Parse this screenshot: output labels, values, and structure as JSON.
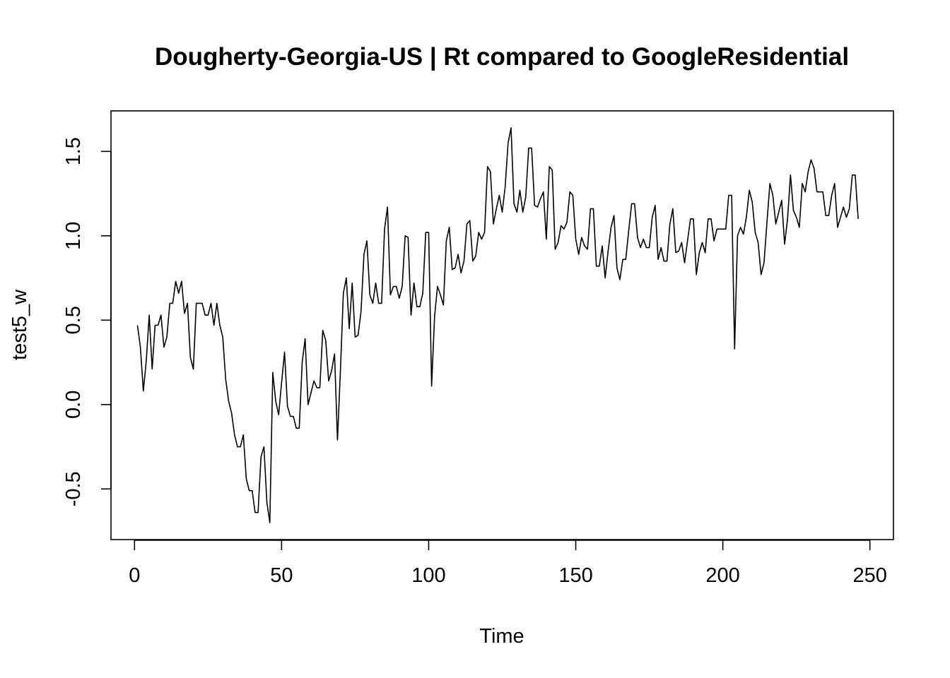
{
  "chart_data": {
    "type": "line",
    "title": "Dougherty-Georgia-US | Rt compared to GoogleResidential",
    "xlabel": "Time",
    "ylabel": "test5_w",
    "xlim": [
      -8,
      258
    ],
    "ylim": [
      -0.8,
      1.74
    ],
    "x_ticks": [
      0,
      50,
      100,
      150,
      200,
      250
    ],
    "x_tick_labels": [
      "0",
      "50",
      "100",
      "150",
      "200",
      "250"
    ],
    "y_ticks": [
      -0.5,
      0.0,
      0.5,
      1.0,
      1.5
    ],
    "y_tick_labels": [
      "-0.5",
      "0.0",
      "0.5",
      "1.0",
      "1.5"
    ],
    "grid": false,
    "legend": "none",
    "line_color": "#000000",
    "x_start": 1,
    "series": [
      {
        "values": [
          0.47,
          0.34,
          0.08,
          0.26,
          0.53,
          0.21,
          0.47,
          0.47,
          0.53,
          0.34,
          0.4,
          0.6,
          0.6,
          0.73,
          0.66,
          0.73,
          0.54,
          0.6,
          0.28,
          0.21,
          0.6,
          0.6,
          0.6,
          0.53,
          0.53,
          0.6,
          0.47,
          0.6,
          0.47,
          0.4,
          0.15,
          0.02,
          -0.05,
          -0.18,
          -0.25,
          -0.25,
          -0.18,
          -0.44,
          -0.51,
          -0.51,
          -0.64,
          -0.64,
          -0.31,
          -0.25,
          -0.58,
          -0.7,
          0.19,
          0.02,
          -0.06,
          0.13,
          0.31,
          -0.01,
          -0.07,
          -0.07,
          -0.14,
          -0.14,
          0.25,
          0.39,
          0.0,
          0.07,
          0.14,
          0.1,
          0.1,
          0.44,
          0.38,
          0.14,
          0.2,
          0.3,
          -0.21,
          0.2,
          0.66,
          0.75,
          0.45,
          0.72,
          0.4,
          0.41,
          0.55,
          0.89,
          0.97,
          0.65,
          0.6,
          0.72,
          0.6,
          0.6,
          1.04,
          1.17,
          0.65,
          0.7,
          0.7,
          0.63,
          0.7,
          1.0,
          0.99,
          0.53,
          0.72,
          0.58,
          0.58,
          0.66,
          1.02,
          1.02,
          0.11,
          0.52,
          0.7,
          0.65,
          0.59,
          0.97,
          1.05,
          0.8,
          0.81,
          0.89,
          0.78,
          0.85,
          1.07,
          1.09,
          0.85,
          0.88,
          1.02,
          0.98,
          1.02,
          1.41,
          1.38,
          1.07,
          1.16,
          1.24,
          1.14,
          1.29,
          1.55,
          1.64,
          1.19,
          1.14,
          1.27,
          1.14,
          1.23,
          1.52,
          1.52,
          1.18,
          1.17,
          1.22,
          1.26,
          0.98,
          1.41,
          1.39,
          0.92,
          0.96,
          1.06,
          1.04,
          1.08,
          1.26,
          1.24,
          0.98,
          0.89,
          0.99,
          0.94,
          0.92,
          1.16,
          1.16,
          0.82,
          0.82,
          0.94,
          0.75,
          0.91,
          1.05,
          1.12,
          0.81,
          0.74,
          0.86,
          0.86,
          1.03,
          1.19,
          1.19,
          0.99,
          0.93,
          0.98,
          0.93,
          0.93,
          1.11,
          1.18,
          0.86,
          0.93,
          0.85,
          0.85,
          1.07,
          1.16,
          0.9,
          0.91,
          0.96,
          0.84,
          0.97,
          1.1,
          1.1,
          0.77,
          0.9,
          0.96,
          0.9,
          1.1,
          1.1,
          0.97,
          1.04,
          1.04,
          1.04,
          1.04,
          1.24,
          1.24,
          0.33,
          1.0,
          1.05,
          1.01,
          1.11,
          1.27,
          1.2,
          1.02,
          0.96,
          0.77,
          0.84,
          1.08,
          1.31,
          1.24,
          1.07,
          1.14,
          1.21,
          0.95,
          1.1,
          1.36,
          1.15,
          1.11,
          1.05,
          1.31,
          1.26,
          1.38,
          1.45,
          1.4,
          1.26,
          1.26,
          1.26,
          1.12,
          1.12,
          1.24,
          1.31,
          1.05,
          1.11,
          1.17,
          1.11,
          1.16,
          1.36,
          1.36,
          1.1
        ]
      }
    ]
  }
}
